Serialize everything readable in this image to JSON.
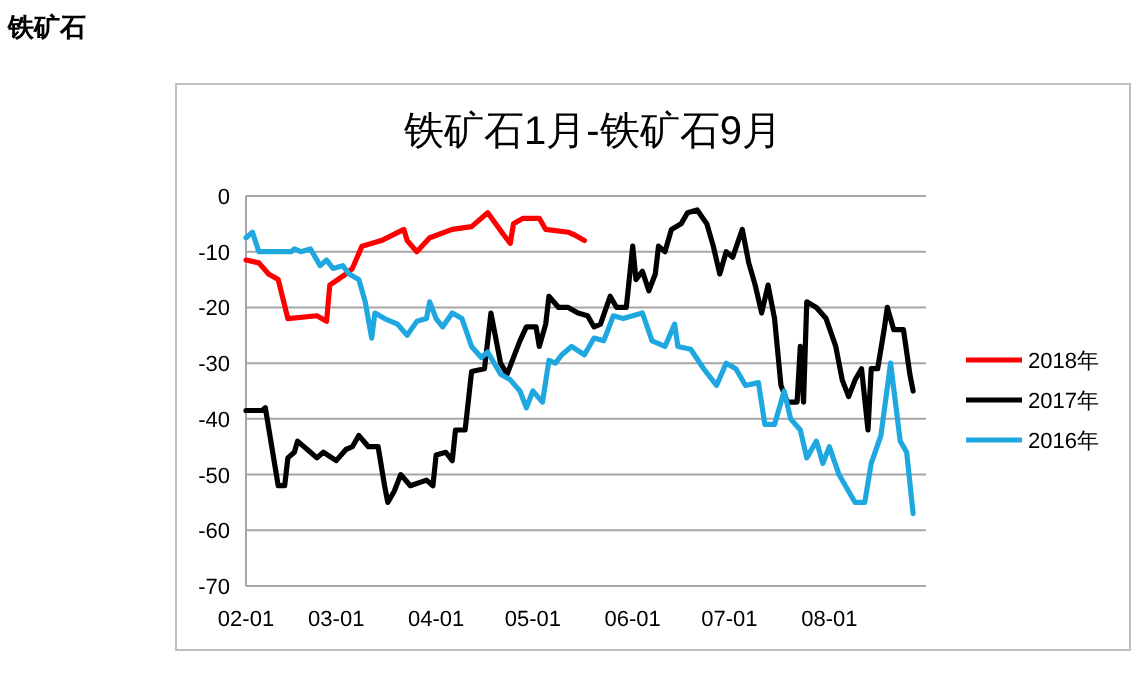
{
  "chart_data": {
    "type": "line",
    "title": "铁矿石1月-铁矿石9月",
    "subtitle": "铁矿石",
    "xlim": [
      "--02-01",
      "--08-31"
    ],
    "xticks": [
      {
        "value": "--02-01",
        "label": "02-01"
      },
      {
        "value": "--03-01",
        "label": "03-01"
      },
      {
        "value": "--04-01",
        "label": "04-01"
      },
      {
        "value": "--05-01",
        "label": "05-01"
      },
      {
        "value": "--06-01",
        "label": "06-01"
      },
      {
        "value": "--07-01",
        "label": "07-01"
      },
      {
        "value": "--08-01",
        "label": "08-01"
      }
    ],
    "ylim": [
      -70,
      0
    ],
    "yticks": [
      -70,
      -60,
      -50,
      -40,
      -30,
      -20,
      -10,
      0
    ],
    "grid": "y",
    "legend": "right",
    "marker": "none",
    "line_style": "solid",
    "series": [
      {
        "name": "2018年",
        "color": "#ff0000",
        "x": [
          "--02-01",
          "--02-05",
          "--02-08",
          "--02-11",
          "--02-14",
          "--02-23",
          "--02-26",
          "--02-27",
          "--03-04",
          "--03-06",
          "--03-09",
          "--03-15",
          "--03-22",
          "--03-23",
          "--03-26",
          "--03-30",
          "--04-06",
          "--04-12",
          "--04-17",
          "--04-22",
          "--04-24",
          "--04-25",
          "--04-28",
          "--05-03",
          "--05-05",
          "--05-12",
          "--05-14",
          "--05-17"
        ],
        "values": [
          -11.5,
          -12,
          -14,
          -15,
          -22,
          -21.5,
          -22.5,
          -16,
          -14,
          -13,
          -9,
          -8,
          -6,
          -8,
          -10,
          -7.5,
          -6,
          -5.5,
          -3,
          -7,
          -8.5,
          -5,
          -4,
          -4,
          -6,
          -6.5,
          -7,
          -8
        ]
      },
      {
        "name": "2017年",
        "color": "#000000",
        "x": [
          "--02-01",
          "--02-06",
          "--02-07",
          "--02-09",
          "--02-11",
          "--02-13",
          "--02-14",
          "--02-16",
          "--02-17",
          "--02-21",
          "--02-23",
          "--02-25",
          "--03-01",
          "--03-04",
          "--03-06",
          "--03-08",
          "--03-11",
          "--03-14",
          "--03-16",
          "--03-17",
          "--03-19",
          "--03-21",
          "--03-24",
          "--03-29",
          "--03-31",
          "--04-01",
          "--04-04",
          "--04-06",
          "--04-07",
          "--04-10",
          "--04-12",
          "--04-16",
          "--04-18",
          "--04-21",
          "--04-23",
          "--04-27",
          "--04-29",
          "--05-02",
          "--05-03",
          "--05-05",
          "--05-06",
          "--05-09",
          "--05-12",
          "--05-15",
          "--05-18",
          "--05-20",
          "--05-22",
          "--05-25",
          "--05-27",
          "--05-30",
          "--06-01",
          "--06-02",
          "--06-04",
          "--06-06",
          "--06-08",
          "--06-09",
          "--06-11",
          "--06-13",
          "--06-16",
          "--06-18",
          "--06-21",
          "--06-24",
          "--06-26",
          "--06-28",
          "--06-30",
          "--07-02",
          "--07-05",
          "--07-07",
          "--07-09",
          "--07-11",
          "--07-13",
          "--07-15",
          "--07-17",
          "--07-19",
          "--07-22",
          "--07-23",
          "--07-24",
          "--07-25",
          "--07-28",
          "--07-31",
          "--08-03",
          "--08-05",
          "--08-07",
          "--08-09",
          "--08-11",
          "--08-13",
          "--08-14",
          "--08-16",
          "--08-18",
          "--08-19",
          "--08-21",
          "--08-24",
          "--08-26",
          "--08-27"
        ],
        "values": [
          -38.5,
          -38.5,
          -38,
          -45,
          -52,
          -52,
          -47,
          -46,
          -44,
          -46,
          -47,
          -46,
          -47.5,
          -45.5,
          -45,
          -43,
          -45,
          -45,
          -52,
          -55,
          -53,
          -50,
          -52,
          -51,
          -52,
          -46.5,
          -46,
          -47.5,
          -42,
          -42,
          -31.5,
          -31,
          -21,
          -30,
          -32,
          -26,
          -23.5,
          -23.5,
          -27,
          -23,
          -18,
          -20,
          -20,
          -21,
          -21.5,
          -23.5,
          -23,
          -18,
          -20,
          -20,
          -9,
          -15,
          -13.5,
          -17,
          -14,
          -9,
          -10,
          -6,
          -5,
          -3,
          -2.5,
          -5,
          -9,
          -14,
          -10,
          -11,
          -6,
          -12,
          -16,
          -21,
          -16,
          -22,
          -34,
          -37,
          -37,
          -27,
          -37,
          -19,
          -20,
          -22,
          -27,
          -33,
          -36,
          -33,
          -31,
          -42,
          -31,
          -31,
          -24,
          -20,
          -24,
          -24,
          -32,
          -35
        ]
      },
      {
        "name": "2016年",
        "color": "#1fa8e0",
        "x": [
          "--02-01",
          "--02-03",
          "--02-05",
          "--02-09",
          "--02-15",
          "--02-16",
          "--02-18",
          "--02-21",
          "--02-24",
          "--02-26",
          "--02-28",
          "--03-03",
          "--03-05",
          "--03-08",
          "--03-10",
          "--03-12",
          "--03-13",
          "--03-16",
          "--03-20",
          "--03-23",
          "--03-26",
          "--03-29",
          "--03-30",
          "--04-01",
          "--04-03",
          "--04-06",
          "--04-09",
          "--04-12",
          "--04-15",
          "--04-17",
          "--04-21",
          "--04-24",
          "--04-27",
          "--04-29",
          "--05-01",
          "--05-04",
          "--05-06",
          "--05-08",
          "--05-10",
          "--05-13",
          "--05-17",
          "--05-20",
          "--05-23",
          "--05-26",
          "--05-29",
          "--06-01",
          "--06-04",
          "--06-07",
          "--06-11",
          "--06-14",
          "--06-15",
          "--06-19",
          "--06-23",
          "--06-27",
          "--06-30",
          "--07-03",
          "--07-06",
          "--07-10",
          "--07-12",
          "--07-15",
          "--07-18",
          "--07-20",
          "--07-23",
          "--07-25",
          "--07-28",
          "--07-30",
          "--08-01",
          "--08-04",
          "--08-06",
          "--08-09",
          "--08-12",
          "--08-14",
          "--08-17",
          "--08-20",
          "--08-23",
          "--08-25",
          "--08-27"
        ],
        "values": [
          -7.5,
          -6.5,
          -10,
          -10,
          -10,
          -9.5,
          -10,
          -9.5,
          -12.5,
          -11.5,
          -13,
          -12.5,
          -14,
          -15,
          -19,
          -25.5,
          -21,
          -22,
          -23,
          -25,
          -22.5,
          -22,
          -19,
          -22,
          -23.5,
          -21,
          -22,
          -27,
          -29,
          -28,
          -32,
          -33,
          -35,
          -38,
          -35,
          -37,
          -29.5,
          -30,
          -28.5,
          -27,
          -28.5,
          -25.5,
          -26,
          -21.5,
          -22,
          -21.5,
          -21,
          -26,
          -27,
          -23,
          -27,
          -27.5,
          -31,
          -34,
          -30,
          -31,
          -34,
          -33.5,
          -41,
          -41,
          -35,
          -40,
          -42,
          -47,
          -44,
          -48,
          -45,
          -50,
          -52,
          -55,
          -55,
          -48,
          -43,
          -30,
          -44,
          -46,
          -57
        ]
      }
    ]
  }
}
